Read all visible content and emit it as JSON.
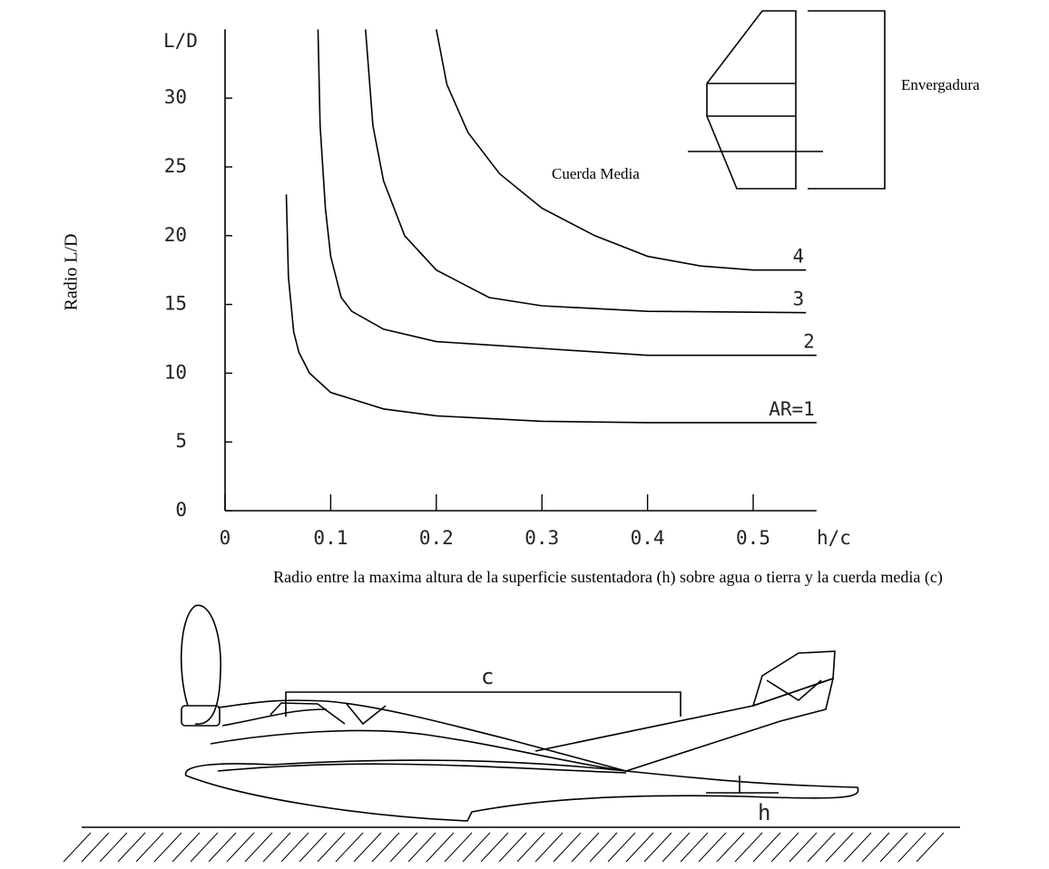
{
  "chart_data": {
    "type": "line",
    "y_label": "Radio L/D",
    "y_axis_title": "L/D",
    "x_axis_title": "h/c",
    "x_label": "Radio entre la maxima altura de la superficie sustentadora (h) sobre agua o tierra y la cuerda media (c)",
    "xlim": [
      0,
      0.56
    ],
    "ylim": [
      0,
      35
    ],
    "xticks": [
      0,
      0.1,
      0.2,
      0.3,
      0.4,
      0.5
    ],
    "yticks": [
      0,
      5,
      10,
      15,
      20,
      25,
      30
    ],
    "color": "#000000",
    "series": [
      {
        "name": "AR=1",
        "color": "#000000",
        "x": [
          0.058,
          0.06,
          0.065,
          0.07,
          0.08,
          0.1,
          0.15,
          0.2,
          0.3,
          0.4,
          0.56
        ],
        "values": [
          23,
          17,
          13,
          11.5,
          10,
          8.6,
          7.4,
          6.9,
          6.5,
          6.4,
          6.4
        ]
      },
      {
        "name": "2",
        "color": "#000000",
        "x": [
          0.088,
          0.09,
          0.095,
          0.1,
          0.11,
          0.12,
          0.15,
          0.2,
          0.3,
          0.4,
          0.56
        ],
        "values": [
          35,
          28,
          22,
          18.5,
          15.5,
          14.5,
          13.2,
          12.3,
          11.8,
          11.3,
          11.3
        ]
      },
      {
        "name": "3",
        "color": "#000000",
        "x": [
          0.133,
          0.14,
          0.15,
          0.17,
          0.2,
          0.25,
          0.3,
          0.4,
          0.55
        ],
        "values": [
          35,
          28,
          24,
          20,
          17.5,
          15.5,
          14.9,
          14.5,
          14.4
        ]
      },
      {
        "name": "4",
        "color": "#000000",
        "x": [
          0.2,
          0.21,
          0.23,
          0.26,
          0.3,
          0.35,
          0.4,
          0.45,
          0.5,
          0.55
        ],
        "values": [
          35,
          31,
          27.5,
          24.5,
          22,
          20,
          18.5,
          17.8,
          17.5,
          17.5
        ]
      }
    ],
    "annotations": [
      "Envergadura",
      "Cuerda Media",
      "c",
      "h"
    ]
  }
}
